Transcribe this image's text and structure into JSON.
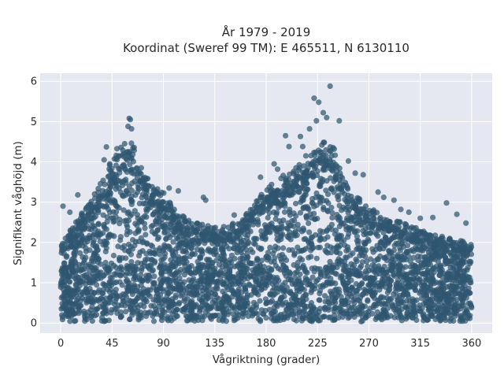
{
  "chart_data": {
    "type": "scatter",
    "title_line1": "År 1979 - 2019",
    "title_line2": "Koordinat (Sweref 99 TM): E 465511, N 6130110",
    "xlabel": "Vågriktning (grader)",
    "ylabel": "Signifikant våghöjd (m)",
    "xlim": [
      -18,
      378
    ],
    "ylim": [
      -0.25,
      6.2
    ],
    "xticks": [
      0,
      45,
      90,
      135,
      180,
      225,
      270,
      315,
      360
    ],
    "yticks": [
      0,
      1,
      2,
      3,
      4,
      5,
      6
    ],
    "grid": true,
    "legend": "none",
    "colors": {
      "background": "#e5e8f0",
      "grid": "#ffffff",
      "point": "#2f5670"
    },
    "envelope": {
      "x": [
        0,
        10,
        20,
        30,
        40,
        50,
        55,
        60,
        65,
        70,
        75,
        80,
        90,
        100,
        110,
        120,
        130,
        140,
        150,
        160,
        165,
        170,
        175,
        180,
        190,
        200,
        210,
        220,
        225,
        230,
        235,
        240,
        245,
        250,
        260,
        270,
        280,
        290,
        300,
        310,
        320,
        330,
        340,
        350,
        360
      ],
      "y": [
        1.8,
        2.2,
        2.6,
        3.0,
        3.5,
        4.1,
        4.2,
        4.25,
        4.0,
        3.6,
        3.4,
        3.2,
        3.0,
        2.6,
        2.4,
        2.3,
        2.25,
        2.2,
        2.3,
        2.4,
        2.6,
        2.8,
        3.0,
        3.1,
        3.3,
        3.5,
        3.7,
        4.0,
        4.1,
        4.2,
        4.15,
        4.0,
        3.6,
        3.2,
        2.9,
        2.7,
        2.5,
        2.4,
        2.3,
        2.2,
        2.1,
        2.0,
        2.0,
        1.9,
        1.8
      ]
    },
    "outliers": [
      {
        "x": 60,
        "y": 5.08
      },
      {
        "x": 61,
        "y": 5.05
      },
      {
        "x": 59,
        "y": 4.88
      },
      {
        "x": 62,
        "y": 4.82
      },
      {
        "x": 56,
        "y": 4.45
      },
      {
        "x": 40,
        "y": 4.37
      },
      {
        "x": 38,
        "y": 4.05
      },
      {
        "x": 43,
        "y": 3.95
      },
      {
        "x": 95,
        "y": 3.35
      },
      {
        "x": 103,
        "y": 3.28
      },
      {
        "x": 125,
        "y": 3.12
      },
      {
        "x": 127,
        "y": 3.05
      },
      {
        "x": 15,
        "y": 3.18
      },
      {
        "x": 2,
        "y": 2.9
      },
      {
        "x": 236,
        "y": 5.88
      },
      {
        "x": 222,
        "y": 5.58
      },
      {
        "x": 226,
        "y": 5.48
      },
      {
        "x": 230,
        "y": 5.22
      },
      {
        "x": 224,
        "y": 5.02
      },
      {
        "x": 233,
        "y": 5.1
      },
      {
        "x": 244,
        "y": 5.02
      },
      {
        "x": 218,
        "y": 4.82
      },
      {
        "x": 210,
        "y": 4.63
      },
      {
        "x": 197,
        "y": 4.65
      },
      {
        "x": 200,
        "y": 4.38
      },
      {
        "x": 212,
        "y": 4.38
      },
      {
        "x": 252,
        "y": 4.02
      },
      {
        "x": 265,
        "y": 3.68
      },
      {
        "x": 258,
        "y": 3.72
      },
      {
        "x": 278,
        "y": 3.25
      },
      {
        "x": 283,
        "y": 3.12
      },
      {
        "x": 292,
        "y": 3.05
      },
      {
        "x": 298,
        "y": 2.82
      },
      {
        "x": 305,
        "y": 2.75
      },
      {
        "x": 338,
        "y": 2.98
      },
      {
        "x": 347,
        "y": 2.7
      },
      {
        "x": 326,
        "y": 2.62
      },
      {
        "x": 187,
        "y": 3.95
      },
      {
        "x": 175,
        "y": 3.62
      },
      {
        "x": 190,
        "y": 3.82
      },
      {
        "x": 170,
        "y": 2.92
      },
      {
        "x": 152,
        "y": 2.68
      },
      {
        "x": 162,
        "y": 2.55
      },
      {
        "x": 315,
        "y": 2.6
      },
      {
        "x": 355,
        "y": 2.48
      },
      {
        "x": 8,
        "y": 2.75
      },
      {
        "x": 22,
        "y": 2.82
      },
      {
        "x": 30,
        "y": 3.1
      }
    ]
  }
}
